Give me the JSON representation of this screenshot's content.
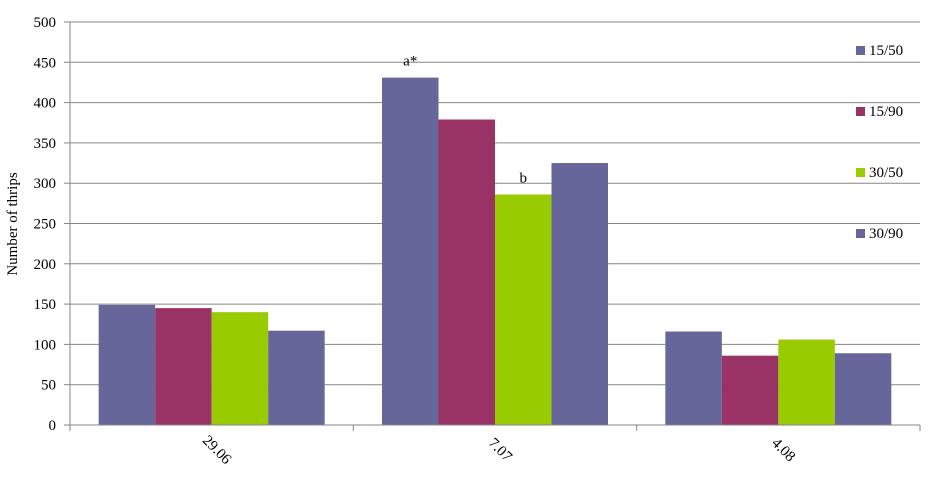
{
  "chart_data": {
    "type": "bar",
    "title": "",
    "xlabel": "",
    "ylabel": "Number of thrips",
    "ylim": [
      0,
      500
    ],
    "yticks": [
      0,
      50,
      100,
      150,
      200,
      250,
      300,
      350,
      400,
      450,
      500
    ],
    "grid": true,
    "legend_position": "right",
    "categories": [
      "29.06",
      "7.07",
      "4.08"
    ],
    "series": [
      {
        "name": "15/50",
        "color": "#66669A",
        "values": [
          149,
          431,
          116
        ]
      },
      {
        "name": "15/90",
        "color": "#993366",
        "values": [
          145,
          379,
          86
        ]
      },
      {
        "name": "30/50",
        "color": "#99CC00",
        "values": [
          140,
          286,
          106
        ]
      },
      {
        "name": "30/90",
        "color": "#66669A",
        "values": [
          117,
          325,
          89
        ]
      }
    ],
    "annotations": [
      {
        "text": "a*",
        "category": "7.07",
        "series": "15/50"
      },
      {
        "text": "b",
        "category": "7.07",
        "series": "30/50"
      }
    ]
  }
}
